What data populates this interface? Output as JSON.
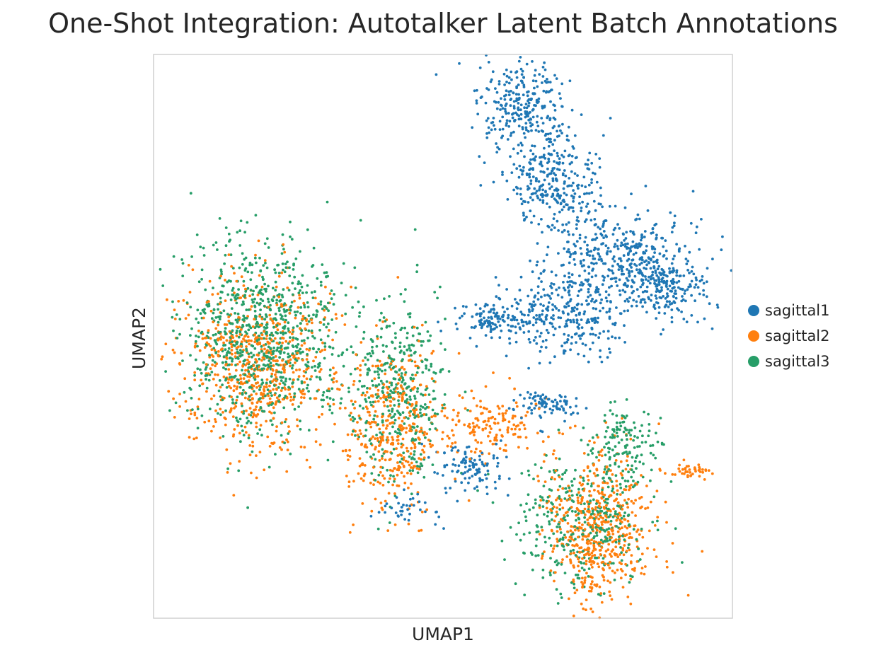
{
  "chart_data": {
    "type": "scatter",
    "title": "One-Shot Integration: Autotalker Latent Batch Annotations",
    "xlabel": "UMAP1",
    "ylabel": "UMAP2",
    "xlim": [
      0,
      100
    ],
    "ylim": [
      0,
      100
    ],
    "x_ticks_shown": false,
    "y_ticks_shown": false,
    "grid": false,
    "legend_position": "right",
    "colors": {
      "sagittal1": "#1f77b4",
      "sagittal2": "#ff7f0e",
      "sagittal3": "#279e68"
    },
    "series": [
      {
        "name": "sagittal1",
        "color": "#1f77b4",
        "approx_regions": [
          {
            "cx": 64,
            "cy": 90,
            "sx": 3.8,
            "sy": 4.4,
            "weight": 0.16
          },
          {
            "cx": 69,
            "cy": 77,
            "sx": 4.0,
            "sy": 4.2,
            "weight": 0.16
          },
          {
            "cx": 81,
            "cy": 64,
            "sx": 5.5,
            "sy": 4.0,
            "weight": 0.22
          },
          {
            "cx": 89,
            "cy": 59,
            "sx": 3.5,
            "sy": 3.0,
            "weight": 0.1
          },
          {
            "cx": 71,
            "cy": 54,
            "sx": 5.0,
            "sy": 4.0,
            "weight": 0.16
          },
          {
            "cx": 59,
            "cy": 53,
            "sx": 3.2,
            "sy": 1.8,
            "weight": 0.07
          },
          {
            "cx": 68,
            "cy": 38,
            "sx": 3.0,
            "sy": 1.2,
            "weight": 0.05
          },
          {
            "cx": 55,
            "cy": 27,
            "sx": 3.2,
            "sy": 2.2,
            "weight": 0.06
          },
          {
            "cx": 45,
            "cy": 19,
            "sx": 2.5,
            "sy": 1.5,
            "weight": 0.02
          }
        ]
      },
      {
        "name": "sagittal2",
        "color": "#ff7f0e",
        "approx_regions": [
          {
            "cx": 18,
            "cy": 45,
            "sx": 6.5,
            "sy": 7.5,
            "weight": 0.33
          },
          {
            "cx": 41,
            "cy": 34,
            "sx": 4.0,
            "sy": 7.0,
            "weight": 0.2
          },
          {
            "cx": 58,
            "cy": 34,
            "sx": 4.5,
            "sy": 3.0,
            "weight": 0.08
          },
          {
            "cx": 77,
            "cy": 16,
            "sx": 4.5,
            "sy": 6.5,
            "weight": 0.28
          },
          {
            "cx": 93,
            "cy": 26,
            "sx": 1.5,
            "sy": 0.7,
            "weight": 0.02
          }
        ]
      },
      {
        "name": "sagittal3",
        "color": "#279e68",
        "approx_regions": [
          {
            "cx": 19,
            "cy": 50,
            "sx": 7.0,
            "sy": 8.5,
            "weight": 0.5
          },
          {
            "cx": 42,
            "cy": 40,
            "sx": 4.0,
            "sy": 8.0,
            "weight": 0.22
          },
          {
            "cx": 74,
            "cy": 17,
            "sx": 6.0,
            "sy": 6.0,
            "weight": 0.2
          },
          {
            "cx": 81,
            "cy": 31,
            "sx": 3.0,
            "sy": 4.0,
            "weight": 0.08
          }
        ]
      }
    ]
  }
}
